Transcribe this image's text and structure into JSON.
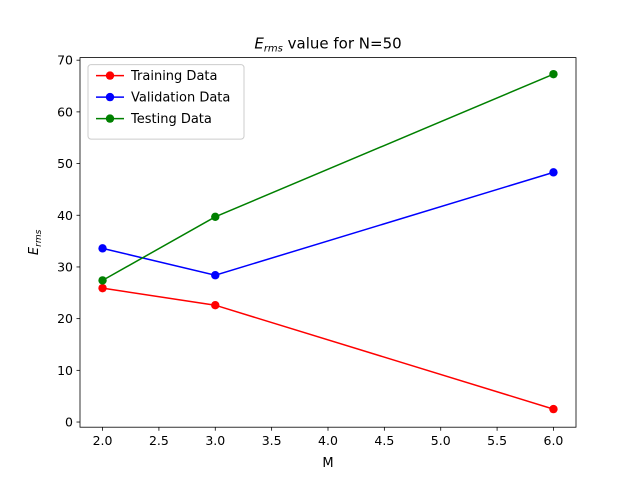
{
  "chart_data": {
    "type": "line",
    "title_base": "E",
    "title_sub": "rms",
    "title_rest": " value for N=50",
    "xlabel": "M",
    "ylabel_base": "E",
    "ylabel_sub": "rms",
    "xlim": [
      1.8,
      6.2
    ],
    "ylim": [
      -1,
      70.5
    ],
    "xticks": [
      2.0,
      2.5,
      3.0,
      3.5,
      4.0,
      4.5,
      5.0,
      5.5,
      6.0
    ],
    "xtick_labels": [
      "2.0",
      "2.5",
      "3.0",
      "3.5",
      "4.0",
      "4.5",
      "5.0",
      "5.5",
      "6.0"
    ],
    "yticks": [
      0,
      10,
      20,
      30,
      40,
      50,
      60,
      70
    ],
    "ytick_labels": [
      "0",
      "10",
      "20",
      "30",
      "40",
      "50",
      "60",
      "70"
    ],
    "grid": false,
    "legend_position": "top-left",
    "x": [
      2,
      3,
      6
    ],
    "series": [
      {
        "name": "Training Data",
        "color": "#ff0000",
        "values": [
          25.9,
          22.6,
          2.5
        ]
      },
      {
        "name": "Validation Data",
        "color": "#0000ff",
        "values": [
          33.6,
          28.4,
          48.3
        ]
      },
      {
        "name": "Testing Data",
        "color": "#008000",
        "values": [
          27.4,
          39.7,
          67.3
        ]
      }
    ]
  }
}
